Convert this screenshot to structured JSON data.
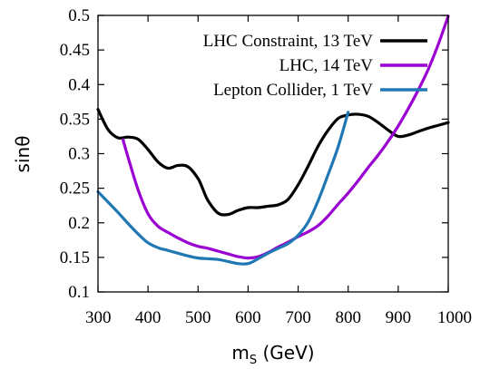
{
  "chart_data": {
    "type": "line",
    "xlabel": "m",
    "xlabel_sub": "S",
    "xlabel_unit": " (GeV)",
    "ylabel": "sinθ",
    "xlim": [
      300,
      1000
    ],
    "ylim": [
      0.1,
      0.5
    ],
    "xticks": [
      300,
      400,
      500,
      600,
      700,
      800,
      900,
      1000
    ],
    "yticks": [
      0.1,
      0.15,
      0.2,
      0.25,
      0.3,
      0.35,
      0.4,
      0.45,
      0.5
    ],
    "legend_position": "top-right",
    "series": [
      {
        "name": "LHC Constraint, 13 TeV",
        "color": "#000000",
        "x": [
          300,
          320,
          340,
          360,
          380,
          400,
          420,
          440,
          460,
          480,
          500,
          510,
          520,
          540,
          560,
          580,
          600,
          620,
          640,
          660,
          680,
          700,
          720,
          740,
          760,
          780,
          800,
          820,
          840,
          860,
          880,
          900,
          920,
          940,
          960,
          980,
          1000
        ],
        "y": [
          0.364,
          0.335,
          0.323,
          0.324,
          0.321,
          0.306,
          0.288,
          0.279,
          0.283,
          0.281,
          0.264,
          0.248,
          0.232,
          0.214,
          0.212,
          0.218,
          0.222,
          0.222,
          0.224,
          0.226,
          0.234,
          0.255,
          0.282,
          0.311,
          0.334,
          0.351,
          0.356,
          0.357,
          0.354,
          0.345,
          0.334,
          0.325,
          0.327,
          0.332,
          0.337,
          0.341,
          0.345
        ]
      },
      {
        "name": "LHC, 14 TeV",
        "color": "#9b00d3",
        "x": [
          350,
          360,
          380,
          400,
          420,
          440,
          460,
          480,
          500,
          520,
          540,
          560,
          580,
          600,
          620,
          640,
          660,
          680,
          700,
          720,
          740,
          760,
          780,
          800,
          820,
          840,
          860,
          880,
          900,
          920,
          940,
          960,
          980,
          1000
        ],
        "y": [
          0.32,
          0.295,
          0.248,
          0.213,
          0.195,
          0.186,
          0.178,
          0.171,
          0.166,
          0.163,
          0.159,
          0.155,
          0.151,
          0.149,
          0.151,
          0.157,
          0.165,
          0.172,
          0.18,
          0.187,
          0.196,
          0.21,
          0.227,
          0.243,
          0.261,
          0.28,
          0.298,
          0.318,
          0.34,
          0.365,
          0.392,
          0.422,
          0.458,
          0.499
        ]
      },
      {
        "name": "Lepton Collider, 1 TeV",
        "color": "#1f78b4",
        "x": [
          300,
          320,
          340,
          360,
          380,
          400,
          420,
          440,
          460,
          480,
          500,
          520,
          540,
          560,
          580,
          600,
          620,
          640,
          660,
          680,
          700,
          720,
          740,
          760,
          780,
          800
        ],
        "y": [
          0.245,
          0.23,
          0.215,
          0.199,
          0.184,
          0.171,
          0.164,
          0.16,
          0.156,
          0.152,
          0.149,
          0.148,
          0.147,
          0.144,
          0.141,
          0.141,
          0.148,
          0.156,
          0.163,
          0.17,
          0.182,
          0.201,
          0.232,
          0.27,
          0.31,
          0.36
        ]
      }
    ]
  }
}
